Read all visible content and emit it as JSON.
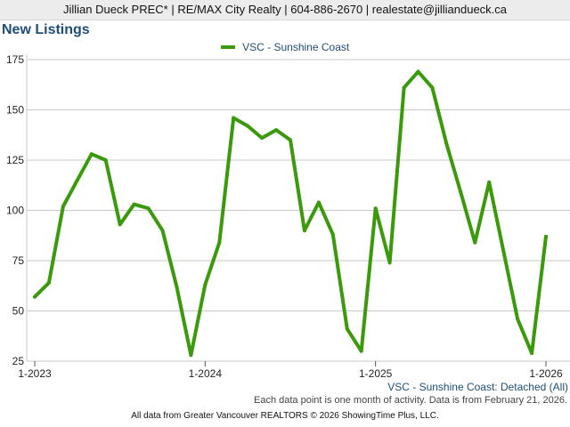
{
  "header": {
    "text": "Jillian Dueck PREC* | RE/MAX City Realty | 604-886-2670 | realestate@jilliandueck.ca"
  },
  "page_title": "New Listings",
  "subtitle": "VSC - Sunshine Coast: Detached (All)",
  "note": "Each data point is one month of activity. Data is from February 21, 2026.",
  "footer": "All data from Greater Vancouver REALTORS © 2026 ShowingTime Plus, LLC.",
  "colors": {
    "series": "#3a9a0b",
    "grid": "#c8c8c8",
    "axis": "#555555"
  },
  "chart_data": {
    "type": "line",
    "title": "New Listings",
    "xlabel": "",
    "ylabel": "",
    "x": [
      "2023-01",
      "2023-02",
      "2023-03",
      "2023-04",
      "2023-05",
      "2023-06",
      "2023-07",
      "2023-08",
      "2023-09",
      "2023-10",
      "2023-11",
      "2023-12",
      "2024-01",
      "2024-02",
      "2024-03",
      "2024-04",
      "2024-05",
      "2024-06",
      "2024-07",
      "2024-08",
      "2024-09",
      "2024-10",
      "2024-11",
      "2024-12",
      "2025-01",
      "2025-02",
      "2025-03",
      "2025-04",
      "2025-05",
      "2025-06",
      "2025-07",
      "2025-08",
      "2025-09",
      "2025-10",
      "2025-11",
      "2025-12",
      "2026-01"
    ],
    "series": [
      {
        "name": "VSC - Sunshine Coast",
        "values": [
          57,
          64,
          102,
          115,
          128,
          125,
          93,
          103,
          101,
          90,
          62,
          28,
          63,
          84,
          146,
          142,
          136,
          140,
          135,
          90,
          104,
          88,
          41,
          30,
          101,
          74,
          161,
          169,
          161,
          133,
          109,
          84,
          114,
          80,
          46,
          29,
          87
        ]
      }
    ],
    "x_ticks": [
      "1-2023",
      "1-2024",
      "1-2025",
      "1-2026"
    ],
    "x_tick_index": [
      0,
      12,
      24,
      36
    ],
    "y_ticks": [
      25,
      50,
      75,
      100,
      125,
      150,
      175
    ],
    "ylim": [
      25,
      175
    ],
    "grid": true,
    "legend": "top-center"
  }
}
